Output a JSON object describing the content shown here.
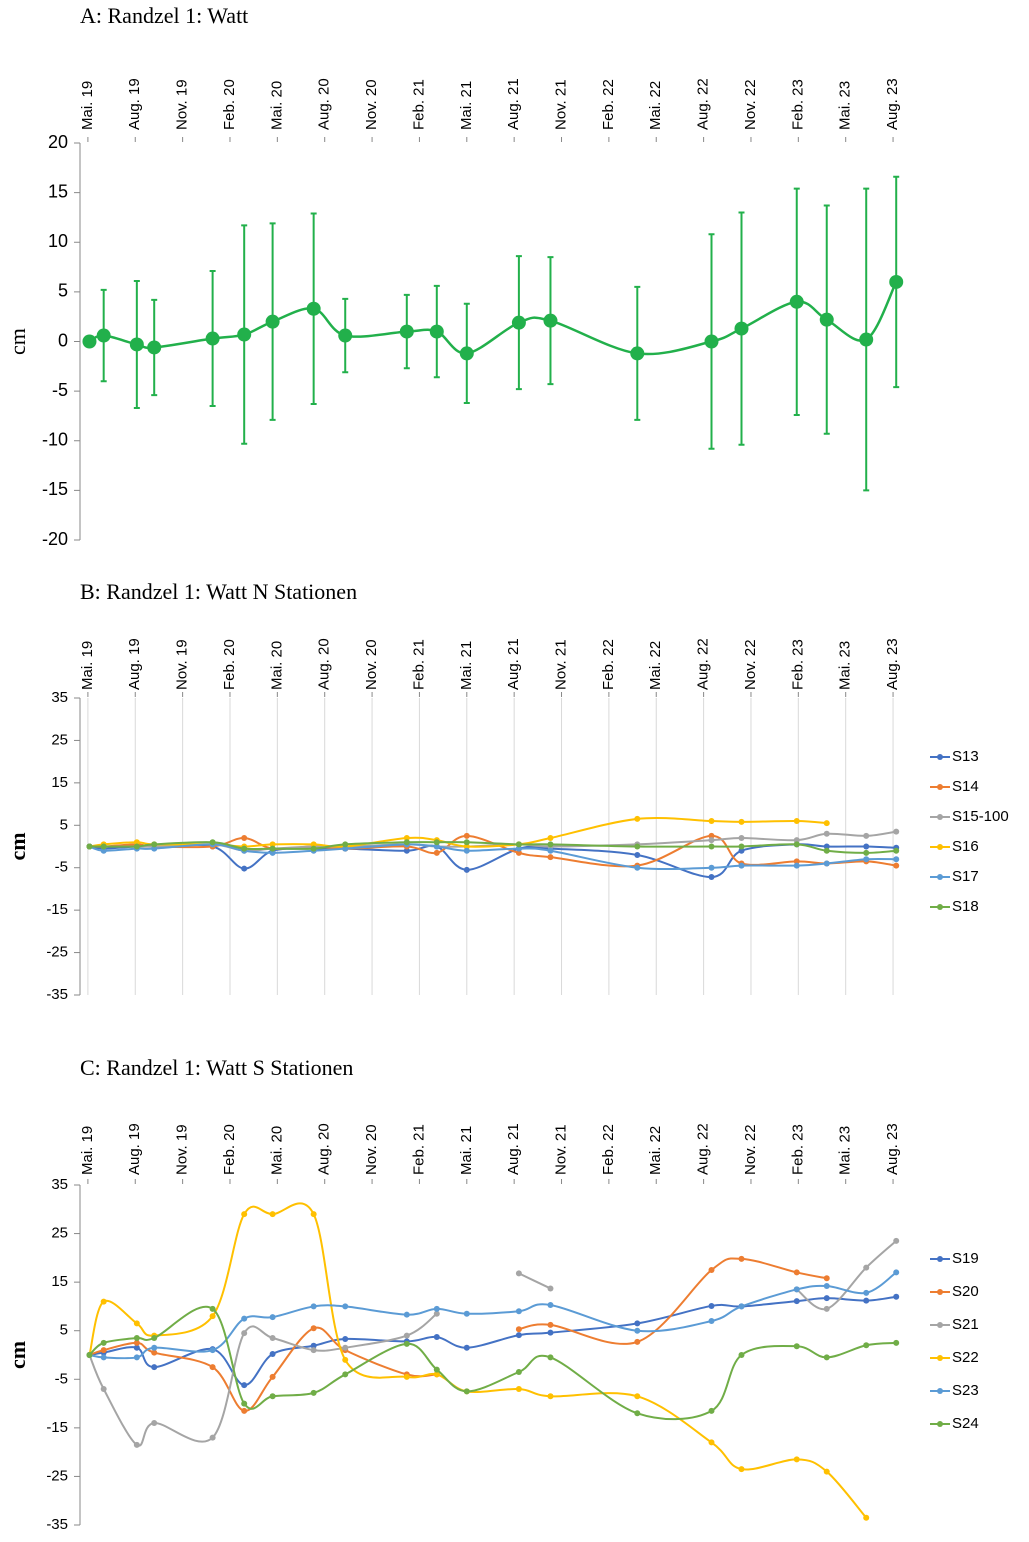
{
  "chart_data": [
    {
      "type": "line",
      "title": "A: Randzel 1: Watt",
      "ylabel": "cm",
      "x": [
        0.1,
        1.0,
        3.1,
        4.2,
        7.9,
        9.9,
        11.7,
        14.3,
        16.3,
        20.2,
        22.1,
        24.0,
        27.3,
        29.3,
        34.8,
        39.5,
        41.4,
        44.9,
        46.8,
        49.3,
        51.2
      ],
      "xlim": [
        -0.5,
        52.2
      ],
      "xticks": [
        {
          "value": 0,
          "label": "Mai. 19"
        },
        {
          "value": 3,
          "label": "Aug. 19"
        },
        {
          "value": 6,
          "label": "Nov. 19"
        },
        {
          "value": 9,
          "label": "Feb. 20"
        },
        {
          "value": 12,
          "label": "Mai. 20"
        },
        {
          "value": 15,
          "label": "Aug. 20"
        },
        {
          "value": 18,
          "label": "Nov. 20"
        },
        {
          "value": 21,
          "label": "Feb. 21"
        },
        {
          "value": 24,
          "label": "Mai. 21"
        },
        {
          "value": 27,
          "label": "Aug. 21"
        },
        {
          "value": 30,
          "label": "Nov. 21"
        },
        {
          "value": 33,
          "label": "Feb. 22"
        },
        {
          "value": 36,
          "label": "Mai. 22"
        },
        {
          "value": 39,
          "label": "Aug. 22"
        },
        {
          "value": 42,
          "label": "Nov. 22"
        },
        {
          "value": 45,
          "label": "Feb. 23"
        },
        {
          "value": 48,
          "label": "Mai. 23"
        },
        {
          "value": 51,
          "label": "Aug. 23"
        }
      ],
      "ylim": [
        -20,
        20
      ],
      "yticks": [
        20,
        15,
        10,
        5,
        0,
        -5,
        -10,
        -15,
        -20
      ],
      "grid": false,
      "series": [
        {
          "color": "#22b04b",
          "values": [
            0.0,
            0.6,
            -0.3,
            -0.6,
            0.3,
            0.7,
            2.0,
            3.3,
            0.6,
            1.0,
            1.0,
            -1.2,
            1.9,
            2.1,
            -1.2,
            0.0,
            1.3,
            4.0,
            2.2,
            0.2,
            6.0
          ],
          "errors": [
            null,
            4.6,
            6.4,
            4.8,
            6.8,
            11.0,
            9.9,
            9.6,
            3.7,
            3.7,
            4.6,
            5.0,
            6.7,
            6.4,
            6.7,
            10.8,
            11.7,
            11.4,
            11.5,
            15.2,
            10.6
          ]
        }
      ]
    },
    {
      "type": "line",
      "title": "B: Randzel 1: Watt N Stationen",
      "ylabel": "cm",
      "x": [
        0.1,
        1.0,
        3.1,
        4.2,
        7.9,
        9.9,
        11.7,
        14.3,
        16.3,
        20.2,
        22.1,
        24.0,
        27.3,
        29.3,
        34.8,
        39.5,
        41.4,
        44.9,
        46.8,
        49.3,
        51.2
      ],
      "xlim": [
        -0.5,
        52.2
      ],
      "xticks": [
        {
          "value": 0,
          "label": "Mai. 19"
        },
        {
          "value": 3,
          "label": "Aug. 19"
        },
        {
          "value": 6,
          "label": "Nov. 19"
        },
        {
          "value": 9,
          "label": "Feb. 20"
        },
        {
          "value": 12,
          "label": "Mai. 20"
        },
        {
          "value": 15,
          "label": "Aug. 20"
        },
        {
          "value": 18,
          "label": "Nov. 20"
        },
        {
          "value": 21,
          "label": "Feb. 21"
        },
        {
          "value": 24,
          "label": "Mai. 21"
        },
        {
          "value": 27,
          "label": "Aug. 21"
        },
        {
          "value": 30,
          "label": "Nov. 21"
        },
        {
          "value": 33,
          "label": "Feb. 22"
        },
        {
          "value": 36,
          "label": "Mai. 22"
        },
        {
          "value": 39,
          "label": "Aug. 22"
        },
        {
          "value": 42,
          "label": "Nov. 22"
        },
        {
          "value": 45,
          "label": "Feb. 23"
        },
        {
          "value": 48,
          "label": "Mai. 23"
        },
        {
          "value": 51,
          "label": "Aug. 23"
        }
      ],
      "ylim": [
        -35,
        35
      ],
      "yticks": [
        35,
        25,
        15,
        5,
        -5,
        -15,
        -25,
        -35
      ],
      "grid": true,
      "legend": "right",
      "series": [
        {
          "name": "S13",
          "color": "#4472c4",
          "values": [
            0,
            -0.5,
            0,
            0,
            0,
            -5.2,
            -1,
            -0.5,
            -0.5,
            -1,
            0,
            -5.5,
            -0.5,
            -0.5,
            -2,
            -7.2,
            -1,
            0.5,
            0,
            0,
            -0.3
          ]
        },
        {
          "name": "S14",
          "color": "#ed7d31",
          "values": [
            0,
            0,
            0.5,
            0,
            0,
            2,
            -0.5,
            0,
            -0.5,
            0,
            -1.5,
            2.5,
            -1.5,
            -2.5,
            -4.5,
            2.5,
            -4,
            -3.5,
            -4,
            -3.5,
            -4.5
          ]
        },
        {
          "name": "S15-100",
          "color": "#a5a5a5",
          "values": [
            0,
            0,
            0,
            0,
            0.5,
            -1,
            -0.5,
            0,
            0,
            0.5,
            0,
            0,
            0.5,
            0,
            0.5,
            1.5,
            2,
            1.5,
            3,
            2.5,
            3.5
          ]
        },
        {
          "name": "S16",
          "color": "#ffc000",
          "values": [
            0,
            0.5,
            1,
            0.5,
            0.5,
            0,
            0.5,
            0.5,
            0,
            2,
            1.5,
            0,
            0.5,
            2,
            6.5,
            6,
            5.8,
            6,
            5.5,
            null,
            null
          ]
        },
        {
          "name": "S17",
          "color": "#5b9bd5",
          "values": [
            0,
            -1,
            -0.5,
            -0.5,
            0.5,
            -1,
            -1.5,
            -1,
            -0.5,
            0.5,
            0,
            -1,
            -0.5,
            -1,
            -5,
            -5,
            -4.5,
            -4.5,
            -4,
            -3,
            -3
          ]
        },
        {
          "name": "S18",
          "color": "#70ad47",
          "values": [
            0,
            0,
            0,
            0.5,
            1,
            -0.5,
            -0.5,
            -0.5,
            0.5,
            1,
            1,
            1,
            0.5,
            0.5,
            0,
            0,
            0,
            0.5,
            -1,
            -1.5,
            -1
          ]
        }
      ]
    },
    {
      "type": "line",
      "title": "C: Randzel 1: Watt S Stationen",
      "ylabel": "cm",
      "x": [
        0.1,
        1.0,
        3.1,
        4.2,
        7.9,
        9.9,
        11.7,
        14.3,
        16.3,
        20.2,
        22.1,
        24.0,
        27.3,
        29.3,
        34.8,
        39.5,
        41.4,
        44.9,
        46.8,
        49.3,
        51.2
      ],
      "xlim": [
        -0.5,
        52.2
      ],
      "xticks": [
        {
          "value": 0,
          "label": "Mai. 19"
        },
        {
          "value": 3,
          "label": "Aug. 19"
        },
        {
          "value": 6,
          "label": "Nov. 19"
        },
        {
          "value": 9,
          "label": "Feb. 20"
        },
        {
          "value": 12,
          "label": "Mai. 20"
        },
        {
          "value": 15,
          "label": "Aug. 20"
        },
        {
          "value": 18,
          "label": "Nov. 20"
        },
        {
          "value": 21,
          "label": "Feb. 21"
        },
        {
          "value": 24,
          "label": "Mai. 21"
        },
        {
          "value": 27,
          "label": "Aug. 21"
        },
        {
          "value": 30,
          "label": "Nov. 21"
        },
        {
          "value": 33,
          "label": "Feb. 22"
        },
        {
          "value": 36,
          "label": "Mai. 22"
        },
        {
          "value": 39,
          "label": "Aug. 22"
        },
        {
          "value": 42,
          "label": "Nov. 22"
        },
        {
          "value": 45,
          "label": "Feb. 23"
        },
        {
          "value": 48,
          "label": "Mai. 23"
        },
        {
          "value": 51,
          "label": "Aug. 23"
        }
      ],
      "ylim": [
        -35,
        35
      ],
      "yticks": [
        35,
        25,
        15,
        5,
        -5,
        -15,
        -25,
        -35
      ],
      "grid": false,
      "legend": "right",
      "series": [
        {
          "name": "S19",
          "color": "#4472c4",
          "values": [
            0,
            0.5,
            1.5,
            -2.5,
            1.2,
            -6.2,
            0.2,
            1.9,
            3.3,
            2.8,
            3.7,
            1.5,
            4.1,
            4.6,
            6.5,
            10.1,
            10,
            11.1,
            11.7,
            11.2,
            12
          ]
        },
        {
          "name": "S20",
          "color": "#ed7d31",
          "values": [
            0,
            1,
            2.5,
            0.5,
            -2.5,
            -11.5,
            -4.5,
            5.5,
            1,
            -4,
            -4,
            null,
            5.3,
            6.2,
            2.7,
            17.5,
            19.8,
            17,
            15.8,
            null,
            null
          ]
        },
        {
          "name": "S21",
          "color": "#a5a5a5",
          "values": [
            0,
            -7,
            -18.5,
            -14,
            -17,
            4.5,
            3.5,
            1,
            1.5,
            4,
            8.5,
            null,
            16.8,
            13.7,
            null,
            null,
            null,
            13.5,
            9.5,
            18,
            23.5
          ]
        },
        {
          "name": "S22",
          "color": "#ffc000",
          "values": [
            0,
            11,
            6.5,
            4,
            8,
            29,
            29,
            29,
            -1,
            -4.5,
            -4,
            -7.5,
            -7,
            -8.5,
            -8.5,
            -18,
            -23.5,
            -21.5,
            -24,
            -33.5,
            null
          ]
        },
        {
          "name": "S23",
          "color": "#5b9bd5",
          "values": [
            0,
            -0.5,
            -0.5,
            1.5,
            1,
            7.5,
            7.8,
            10,
            10,
            8.3,
            9.5,
            8.5,
            9,
            10.3,
            5,
            7,
            10,
            13.5,
            14.2,
            12.8,
            17
          ]
        },
        {
          "name": "S24",
          "color": "#70ad47",
          "values": [
            0,
            2.5,
            3.5,
            3.5,
            9.5,
            -10,
            -8.5,
            -7.8,
            -4,
            2.3,
            -3,
            -7.5,
            -3.5,
            -0.5,
            -12,
            -11.5,
            0,
            1.8,
            -0.5,
            2,
            2.5
          ]
        }
      ]
    }
  ]
}
